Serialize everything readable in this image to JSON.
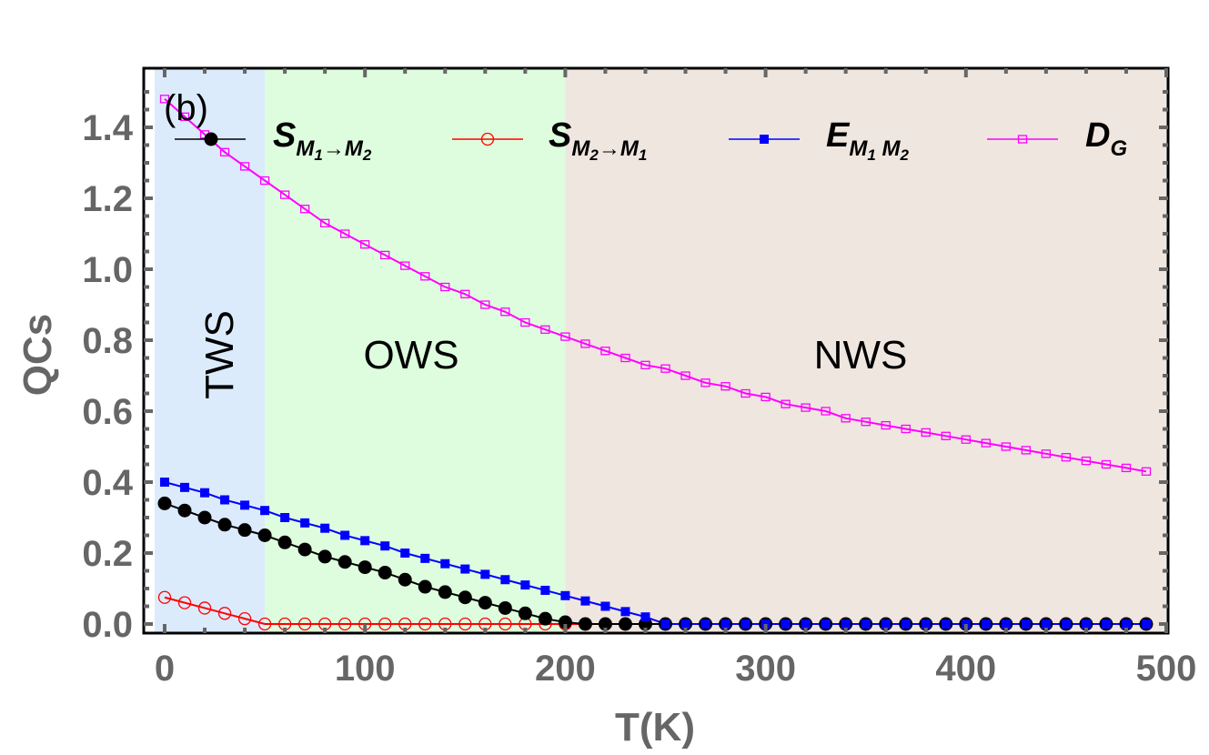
{
  "chart_data": {
    "type": "line",
    "title": "",
    "panel_label": "(b)",
    "xlabel": "T(K)",
    "ylabel": "QCs",
    "xlim": [
      -5,
      500
    ],
    "ylim": [
      -0.03,
      1.53
    ],
    "grid": false,
    "legend_position": "top",
    "x_ticks": [
      0,
      100,
      200,
      300,
      400,
      500
    ],
    "x_tick_labels": [
      "0",
      "100",
      "200",
      "300",
      "400",
      "500"
    ],
    "y_ticks": [
      0.0,
      0.2,
      0.4,
      0.6,
      0.8,
      1.0,
      1.2,
      1.4
    ],
    "y_tick_labels": [
      "0.0",
      "0.2",
      "0.4",
      "0.6",
      "0.8",
      "1.0",
      "1.2",
      "1.4"
    ],
    "regions": [
      {
        "label": "TWS",
        "x_start": -5,
        "x_end": 50,
        "color": "#dcebfc",
        "label_rotated": true
      },
      {
        "label": "OWS",
        "x_start": 50,
        "x_end": 200,
        "color": "#defdde",
        "label_rotated": false
      },
      {
        "label": "NWS",
        "x_start": 200,
        "x_end": 500,
        "color": "#efe6e0",
        "label_rotated": false
      }
    ],
    "x": [
      0,
      10,
      20,
      30,
      40,
      50,
      60,
      70,
      80,
      90,
      100,
      110,
      120,
      130,
      140,
      150,
      160,
      170,
      180,
      190,
      200,
      210,
      220,
      230,
      240,
      250,
      260,
      270,
      280,
      290,
      300,
      310,
      320,
      330,
      340,
      350,
      360,
      370,
      380,
      390,
      400,
      410,
      420,
      430,
      440,
      450,
      460,
      470,
      480,
      490
    ],
    "series": [
      {
        "name": "S_{M1→M2}",
        "legend_main": "S",
        "legend_sub": "M",
        "legend_sub1": "1",
        "legend_arrow": "→M",
        "legend_sub2": "2",
        "color": "#000000",
        "marker": "filled-circle",
        "values": [
          0.34,
          0.32,
          0.3,
          0.28,
          0.265,
          0.25,
          0.23,
          0.21,
          0.19,
          0.175,
          0.16,
          0.145,
          0.125,
          0.105,
          0.09,
          0.075,
          0.06,
          0.045,
          0.03,
          0.015,
          0.005,
          0,
          0,
          0,
          0,
          0,
          0,
          0,
          0,
          0,
          0,
          0,
          0,
          0,
          0,
          0,
          0,
          0,
          0,
          0,
          0,
          0,
          0,
          0,
          0,
          0,
          0,
          0,
          0,
          0
        ]
      },
      {
        "name": "S_{M2→M1}",
        "legend_main": "S",
        "legend_sub": "M",
        "legend_sub1": "2",
        "legend_arrow": "→M",
        "legend_sub2": "1",
        "color": "#ff0000",
        "marker": "open-circle",
        "values": [
          0.075,
          0.06,
          0.045,
          0.03,
          0.015,
          0,
          0,
          0,
          0,
          0,
          0,
          0,
          0,
          0,
          0,
          0,
          0,
          0,
          0,
          0,
          0,
          0,
          0,
          0,
          0,
          0,
          0,
          0,
          0,
          0,
          0,
          0,
          0,
          0,
          0,
          0,
          0,
          0,
          0,
          0,
          0,
          0,
          0,
          0,
          0,
          0,
          0,
          0,
          0,
          0
        ]
      },
      {
        "name": "E_{M1 M2}",
        "legend_main": "E",
        "legend_sub": "M",
        "legend_sub1": "1",
        "legend_arrow": " M",
        "legend_sub2": "2",
        "color": "#0000ff",
        "marker": "filled-square",
        "values": [
          0.4,
          0.385,
          0.37,
          0.35,
          0.335,
          0.32,
          0.3,
          0.285,
          0.27,
          0.25,
          0.235,
          0.22,
          0.2,
          0.185,
          0.17,
          0.155,
          0.14,
          0.125,
          0.11,
          0.095,
          0.08,
          0.065,
          0.05,
          0.035,
          0.02,
          0,
          0,
          0,
          0,
          0,
          0,
          0,
          0,
          0,
          0,
          0,
          0,
          0,
          0,
          0,
          0,
          0,
          0,
          0,
          0,
          0,
          0,
          0,
          0,
          0
        ]
      },
      {
        "name": "D_G",
        "legend_main": "D",
        "legend_sub": "G",
        "legend_sub1": "",
        "legend_arrow": "",
        "legend_sub2": "",
        "color": "#ff00ff",
        "marker": "open-square",
        "values": [
          1.48,
          1.43,
          1.38,
          1.33,
          1.29,
          1.25,
          1.21,
          1.17,
          1.13,
          1.1,
          1.07,
          1.04,
          1.01,
          0.98,
          0.95,
          0.93,
          0.9,
          0.88,
          0.85,
          0.83,
          0.81,
          0.79,
          0.77,
          0.75,
          0.73,
          0.72,
          0.7,
          0.68,
          0.67,
          0.65,
          0.64,
          0.62,
          0.61,
          0.6,
          0.58,
          0.57,
          0.56,
          0.55,
          0.54,
          0.53,
          0.52,
          0.51,
          0.5,
          0.49,
          0.48,
          0.47,
          0.46,
          0.45,
          0.44,
          0.43
        ]
      }
    ]
  }
}
